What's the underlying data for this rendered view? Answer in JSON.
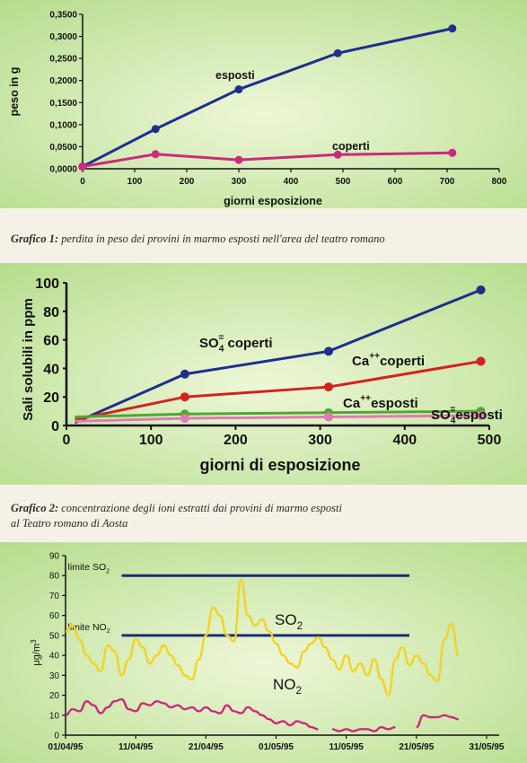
{
  "colors": {
    "blue": "#1f2f8f",
    "magenta": "#cc2a7c",
    "red": "#d2231f",
    "green": "#4fa832",
    "pink": "#e07ab6",
    "yellow": "#f2d323",
    "navy": "#1a2d78"
  },
  "captions": {
    "c1_label": "Grafico 1:",
    "c1_text": " perdita in peso dei provini in marmo esposti nell'area del teatro romano",
    "c2_label": "Grafico 2:",
    "c2_text1": " concentrazione degli ioni estratti dai provini di marmo esposti",
    "c2_text2": "al Teatro romano di Aosta"
  },
  "chart_data": [
    {
      "type": "line",
      "title": "",
      "xlabel": "giorni esposizione",
      "ylabel": "peso in g",
      "xlim": [
        0,
        800
      ],
      "ylim": [
        0,
        0.35
      ],
      "xticks": [
        "0",
        "100",
        "200",
        "300",
        "400",
        "500",
        "600",
        "700",
        "800"
      ],
      "yticks": [
        "0,0000",
        "0,0500",
        "0,1000",
        "0,1500",
        "0,2000",
        "0,2500",
        "0,3000",
        "0,3500"
      ],
      "series": [
        {
          "name": "esposti",
          "color": "blue",
          "x": [
            0,
            140,
            300,
            490,
            710
          ],
          "y": [
            0.005,
            0.09,
            0.18,
            0.262,
            0.318
          ]
        },
        {
          "name": "coperti",
          "color": "magenta",
          "x": [
            0,
            140,
            300,
            490,
            710
          ],
          "y": [
            0.005,
            0.033,
            0.02,
            0.032,
            0.036
          ]
        }
      ]
    },
    {
      "type": "line",
      "title": "",
      "xlabel": "giorni di esposizione",
      "ylabel": "Sali solubili in ppm",
      "xlim": [
        0,
        500
      ],
      "ylim": [
        0,
        100
      ],
      "xticks": [
        "0",
        "100",
        "200",
        "300",
        "400",
        "500"
      ],
      "yticks": [
        "0",
        "20",
        "40",
        "60",
        "80",
        "100"
      ],
      "series": [
        {
          "name": "SO4= coperti",
          "color": "blue",
          "label_main": "SO",
          "label_sub": "4",
          "label_sup": "=",
          "label_rest": " coperti",
          "x": [
            10,
            140,
            310,
            490
          ],
          "y": [
            2,
            36,
            52,
            95
          ]
        },
        {
          "name": "Ca++ coperti",
          "color": "red",
          "label_main": "Ca",
          "label_sup": "++",
          "label_rest": "coperti",
          "x": [
            10,
            140,
            310,
            490
          ],
          "y": [
            4,
            20,
            27,
            45
          ]
        },
        {
          "name": "Ca++ esposti",
          "color": "green",
          "label_main": "Ca",
          "label_sup": "++",
          "label_rest": "esposti",
          "x": [
            10,
            140,
            310,
            490
          ],
          "y": [
            6,
            8,
            9,
            10
          ]
        },
        {
          "name": "SO4= esposti",
          "color": "pink",
          "label_main": "SO",
          "label_sub": "4",
          "label_sup": "=",
          "label_rest": "esposti",
          "x": [
            10,
            140,
            310,
            490
          ],
          "y": [
            3,
            5,
            6,
            7
          ]
        }
      ]
    },
    {
      "type": "line",
      "title": "",
      "xlabel": "",
      "ylabel": "μg/m3",
      "ylabel_main": "μg/m",
      "ylabel_sup": "3",
      "xlim": [
        0,
        60
      ],
      "ylim": [
        0,
        90
      ],
      "xticks": [
        "01/04/95",
        "11/04/95",
        "21/04/95",
        "01/05/95",
        "11/05/95",
        "21/05/95",
        "31/05/95"
      ],
      "xtick_days": [
        0,
        10,
        20,
        30,
        40,
        50,
        60
      ],
      "yticks": [
        "0",
        "10",
        "20",
        "30",
        "40",
        "50",
        "60",
        "70",
        "80",
        "90"
      ],
      "limits": [
        {
          "label_main": "limite SO",
          "label_sub": "2",
          "value": 80,
          "from_day": 8,
          "to_day": 49
        },
        {
          "label_main": "limite NO",
          "label_sub": "2",
          "value": 50,
          "from_day": 8,
          "to_day": 49
        }
      ],
      "series": [
        {
          "name": "SO2",
          "label_main": "SO",
          "label_sub": "2",
          "color": "yellow",
          "x": [
            0,
            1,
            2,
            3,
            4,
            5,
            6,
            7,
            8,
            9,
            10,
            11,
            12,
            13,
            14,
            15,
            16,
            17,
            18,
            19,
            20,
            21,
            22,
            23,
            24,
            25,
            26,
            27,
            28,
            29,
            30,
            31,
            32,
            33,
            34,
            35,
            36,
            37,
            38,
            39,
            40,
            41,
            42,
            43,
            44,
            45,
            46,
            47,
            48,
            49,
            50,
            51,
            52,
            53,
            54,
            55,
            56
          ],
          "y": [
            52,
            55,
            48,
            40,
            36,
            32,
            45,
            42,
            30,
            38,
            48,
            44,
            36,
            40,
            45,
            40,
            35,
            30,
            28,
            38,
            50,
            64,
            60,
            50,
            47,
            78,
            60,
            55,
            58,
            52,
            46,
            40,
            36,
            34,
            42,
            46,
            49,
            44,
            38,
            33,
            40,
            32,
            36,
            30,
            38,
            28,
            20,
            38,
            44,
            35,
            40,
            36,
            30,
            27,
            48,
            56,
            40
          ]
        },
        {
          "name": "NO2",
          "label_main": "NO",
          "label_sub": "2",
          "color": "magenta",
          "segments": [
            {
              "x": [
                0,
                1,
                2,
                3,
                4,
                5,
                6,
                7,
                8,
                9,
                10,
                11,
                12,
                13,
                14,
                15,
                16,
                17,
                18,
                19,
                20,
                21,
                22,
                23,
                24,
                25,
                26,
                27,
                28,
                29,
                30,
                31,
                32,
                33,
                34,
                35,
                36
              ],
              "y": [
                10,
                13,
                12,
                17,
                15,
                11,
                14,
                17,
                18,
                13,
                12,
                16,
                15,
                17,
                16,
                14,
                15,
                13,
                14,
                12,
                14,
                12,
                11,
                15,
                12,
                11,
                14,
                12,
                10,
                8,
                6,
                7,
                5,
                7,
                6,
                4,
                3
              ]
            },
            {
              "x": [
                38,
                39,
                40,
                41,
                42,
                43,
                44,
                45,
                46,
                47
              ],
              "y": [
                3,
                2,
                3,
                2,
                3,
                3,
                2,
                4,
                3,
                4
              ]
            },
            {
              "x": [
                50,
                51,
                52,
                53,
                54,
                55,
                56
              ],
              "y": [
                4,
                10,
                9,
                9,
                10,
                9,
                8
              ]
            }
          ]
        }
      ]
    }
  ]
}
